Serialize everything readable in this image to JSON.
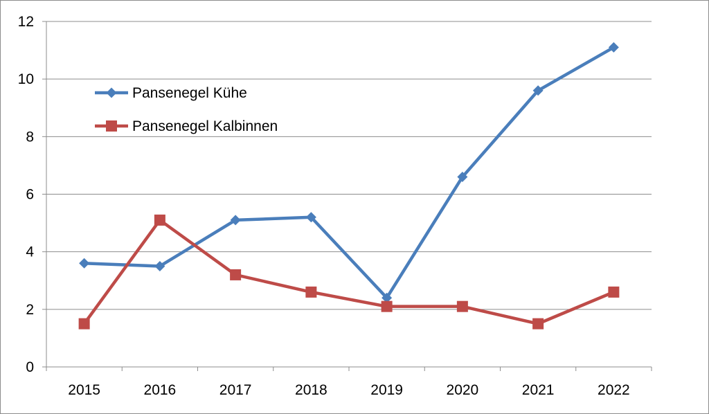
{
  "chart_data": {
    "type": "line",
    "title": "",
    "xlabel": "",
    "ylabel": "",
    "categories": [
      "2015",
      "2016",
      "2017",
      "2018",
      "2019",
      "2020",
      "2021",
      "2022"
    ],
    "ylim": [
      0,
      12
    ],
    "yticks": [
      0,
      2,
      4,
      6,
      8,
      10,
      12
    ],
    "grid": "horizontal",
    "legend_position": "top-left",
    "series": [
      {
        "name": "Pansenegel Kühe",
        "color": "#4a7ebb",
        "marker": "diamond",
        "values": [
          3.6,
          3.5,
          5.1,
          5.2,
          2.4,
          6.6,
          9.6,
          11.1
        ]
      },
      {
        "name": "Pansenegel Kalbinnen",
        "color": "#be4b48",
        "marker": "square",
        "values": [
          1.5,
          5.1,
          3.2,
          2.6,
          2.1,
          2.1,
          1.5,
          2.6
        ]
      }
    ]
  }
}
